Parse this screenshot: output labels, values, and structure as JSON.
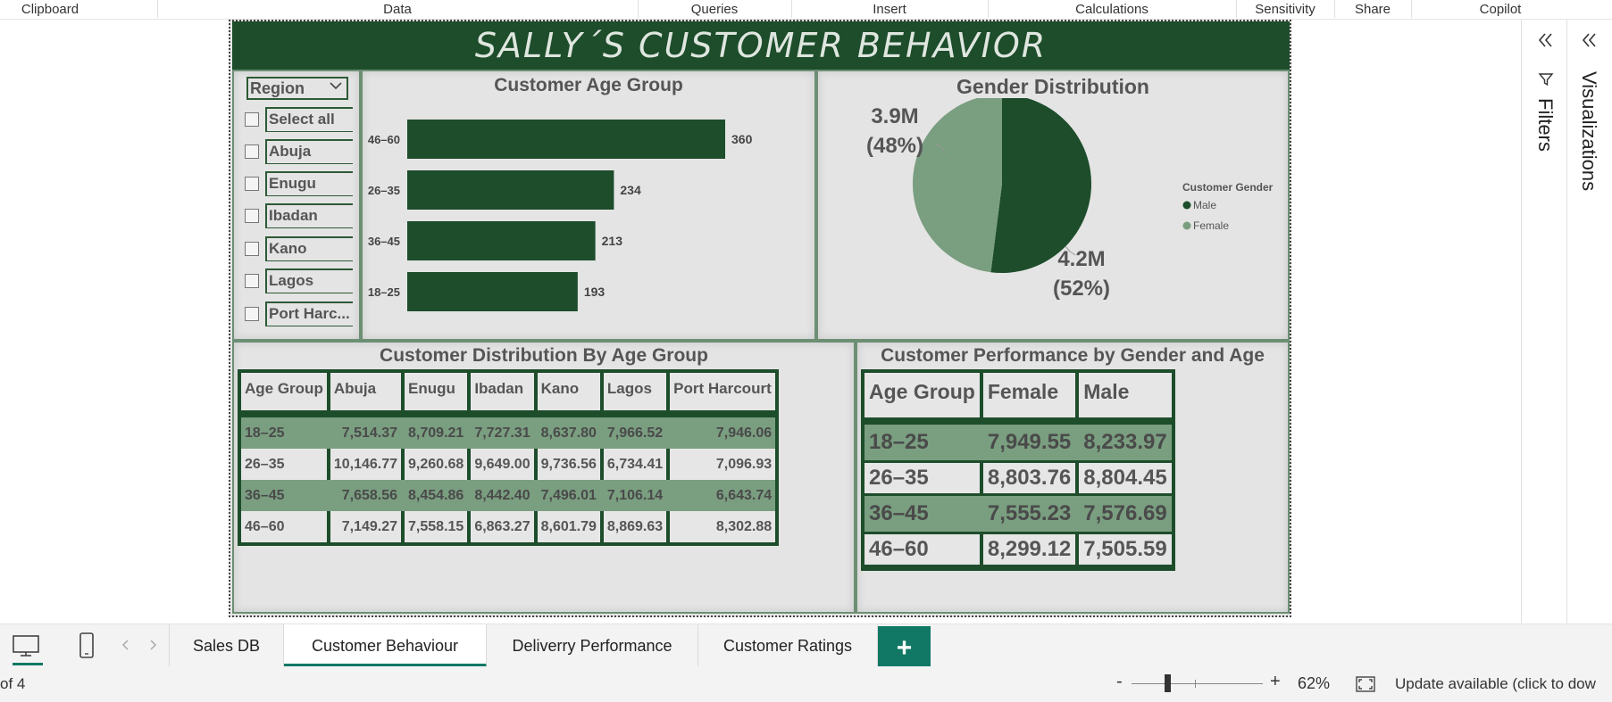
{
  "ribbon": {
    "groups": [
      "Clipboard",
      "Data",
      "Queries",
      "Insert",
      "Calculations",
      "Sensitivity",
      "Share",
      "Copilot"
    ]
  },
  "report": {
    "title": "SALLY´S CUSTOMER BEHAVIOR"
  },
  "slicer": {
    "title": "Region",
    "items": [
      "Select all",
      "Abuja",
      "Enugu",
      "Ibadan",
      "Kano",
      "Lagos",
      "Port Harc..."
    ]
  },
  "chart_data": [
    {
      "type": "bar",
      "title": "Customer Age Group",
      "orientation": "horizontal",
      "categories": [
        "46–60",
        "26–35",
        "36–45",
        "18–25"
      ],
      "values": [
        360,
        234,
        213,
        193
      ],
      "xlim": [
        0,
        360
      ],
      "color": "#1d4d2b"
    },
    {
      "type": "pie",
      "title": "Gender Distribution",
      "legend_title": "Customer Gender",
      "legend_position": "right",
      "slices": [
        {
          "name": "Male",
          "value": 4.2,
          "label": "4.2M",
          "pct_label": "(52%)",
          "pct": 52,
          "color": "#1d4d2b"
        },
        {
          "name": "Female",
          "value": 3.9,
          "label": "3.9M",
          "pct_label": "(48%)",
          "pct": 48,
          "color": "#7a9e80"
        }
      ]
    },
    {
      "type": "table",
      "title": "Customer Distribution By Age Group",
      "columns": [
        "Age Group",
        "Abuja",
        "Enugu",
        "Ibadan",
        "Kano",
        "Lagos",
        "Port Harcourt"
      ],
      "rows": [
        [
          "18–25",
          "7,514.37",
          "8,709.21",
          "7,727.31",
          "8,637.80",
          "7,966.52",
          "7,946.06"
        ],
        [
          "26–35",
          "10,146.77",
          "9,260.68",
          "9,649.00",
          "9,736.56",
          "6,734.41",
          "7,096.93"
        ],
        [
          "36–45",
          "7,658.56",
          "8,454.86",
          "8,442.40",
          "7,496.01",
          "7,106.14",
          "6,643.74"
        ],
        [
          "46–60",
          "7,149.27",
          "7,558.15",
          "6,863.27",
          "8,601.79",
          "8,869.63",
          "8,302.88"
        ]
      ]
    },
    {
      "type": "table",
      "title": "Customer Performance by Gender and Age",
      "columns": [
        "Age Group",
        "Female",
        "Male"
      ],
      "rows": [
        [
          "18–25",
          "7,949.55",
          "8,233.97"
        ],
        [
          "26–35",
          "8,803.76",
          "8,804.45"
        ],
        [
          "36–45",
          "7,555.23",
          "7,576.69"
        ],
        [
          "46–60",
          "8,299.12",
          "7,505.59"
        ]
      ]
    }
  ],
  "colors": {
    "dark_green": "#1d4d2b",
    "light_green": "#7a9e80",
    "band_green": "#7a9e80",
    "accent_teal": "#117865"
  },
  "page_tabs": {
    "tabs": [
      "Sales DB",
      "Customer Behaviour",
      "Deliverry Performance",
      "Customer Ratings"
    ],
    "active_index": 1,
    "add_label": "+"
  },
  "right_panes": {
    "filters": "Filters",
    "visualizations": "Visualizations"
  },
  "status": {
    "page_info": "of 4",
    "zoom_minus": "-",
    "zoom_plus": "+",
    "zoom": "62%",
    "update": "Update available (click to dow"
  }
}
